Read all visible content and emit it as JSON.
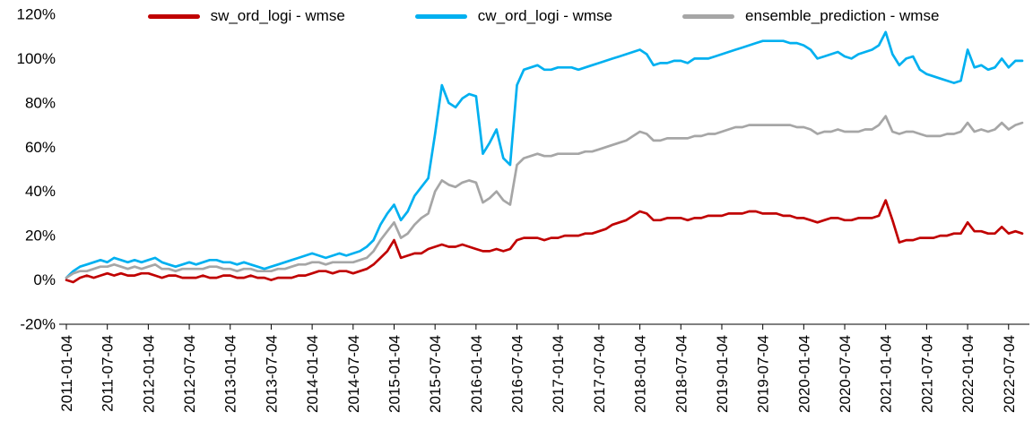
{
  "chart_data": {
    "type": "line",
    "title": "",
    "xlabel": "",
    "ylabel": "",
    "ylim": [
      -20,
      120
    ],
    "yticks": [
      120,
      100,
      80,
      60,
      40,
      20,
      0,
      -20
    ],
    "ytick_suffix": "%",
    "grid": "off",
    "legend_position": "top",
    "x_start": "2011-01-04",
    "x_sampling": "monthly",
    "x_tick_interval_points": 6,
    "x_tick_labels": [
      "2011-01-04",
      "2011-07-04",
      "2012-01-04",
      "2012-07-04",
      "2013-01-04",
      "2013-07-04",
      "2014-01-04",
      "2014-07-04",
      "2015-01-04",
      "2015-07-04",
      "2016-01-04",
      "2016-07-04",
      "2017-01-04",
      "2017-07-04",
      "2018-01-04",
      "2018-07-04",
      "2019-01-04",
      "2019-07-04",
      "2020-01-04",
      "2020-07-04",
      "2021-01-04",
      "2021-07-04",
      "2022-01-04",
      "2022-07-04"
    ],
    "series": [
      {
        "name": "sw_ord_logi - wmse",
        "color": "#C00000",
        "values": [
          0,
          -1,
          1,
          2,
          1,
          2,
          3,
          2,
          3,
          2,
          2,
          3,
          3,
          2,
          1,
          2,
          2,
          1,
          1,
          1,
          2,
          1,
          1,
          2,
          2,
          1,
          1,
          2,
          1,
          1,
          0,
          1,
          1,
          1,
          2,
          2,
          3,
          4,
          4,
          3,
          4,
          4,
          3,
          4,
          5,
          7,
          10,
          13,
          18,
          10,
          11,
          12,
          12,
          14,
          15,
          16,
          15,
          15,
          16,
          15,
          14,
          13,
          13,
          14,
          13,
          14,
          18,
          19,
          19,
          19,
          18,
          19,
          19,
          20,
          20,
          20,
          21,
          21,
          22,
          23,
          25,
          26,
          27,
          29,
          31,
          30,
          27,
          27,
          28,
          28,
          28,
          27,
          28,
          28,
          29,
          29,
          29,
          30,
          30,
          30,
          31,
          31,
          30,
          30,
          30,
          29,
          29,
          28,
          28,
          27,
          26,
          27,
          28,
          28,
          27,
          27,
          28,
          28,
          28,
          29,
          36,
          27,
          17,
          18,
          18,
          19,
          19,
          19,
          20,
          20,
          21,
          21,
          26,
          22,
          22,
          21,
          21,
          24,
          21,
          22,
          21
        ]
      },
      {
        "name": "cw_ord_logi - wmse",
        "color": "#00B0F0",
        "values": [
          1,
          4,
          6,
          7,
          8,
          9,
          8,
          10,
          9,
          8,
          9,
          8,
          9,
          10,
          8,
          7,
          6,
          7,
          8,
          7,
          8,
          9,
          9,
          8,
          8,
          7,
          8,
          7,
          6,
          5,
          6,
          7,
          8,
          9,
          10,
          11,
          12,
          11,
          10,
          11,
          12,
          11,
          12,
          13,
          15,
          18,
          25,
          30,
          34,
          27,
          31,
          38,
          42,
          46,
          66,
          88,
          80,
          78,
          82,
          84,
          83,
          57,
          62,
          68,
          55,
          52,
          88,
          95,
          96,
          97,
          95,
          95,
          96,
          96,
          96,
          95,
          96,
          97,
          98,
          99,
          100,
          101,
          102,
          103,
          104,
          102,
          97,
          98,
          98,
          99,
          99,
          98,
          100,
          100,
          100,
          101,
          102,
          103,
          104,
          105,
          106,
          107,
          108,
          108,
          108,
          108,
          107,
          107,
          106,
          104,
          100,
          101,
          102,
          103,
          101,
          100,
          102,
          103,
          104,
          106,
          112,
          102,
          97,
          100,
          101,
          95,
          93,
          92,
          91,
          90,
          89,
          90,
          104,
          96,
          97,
          95,
          96,
          100,
          96,
          99,
          99
        ]
      },
      {
        "name": "ensemble_prediction - wmse",
        "color": "#A6A6A6",
        "values": [
          1,
          3,
          4,
          4,
          5,
          6,
          6,
          7,
          6,
          5,
          6,
          5,
          6,
          7,
          5,
          5,
          4,
          5,
          5,
          5,
          5,
          6,
          6,
          5,
          5,
          4,
          5,
          5,
          4,
          4,
          4,
          5,
          5,
          6,
          7,
          7,
          8,
          8,
          7,
          8,
          8,
          8,
          8,
          9,
          10,
          13,
          18,
          22,
          26,
          19,
          21,
          25,
          28,
          30,
          40,
          45,
          43,
          42,
          44,
          45,
          44,
          35,
          37,
          40,
          36,
          34,
          52,
          55,
          56,
          57,
          56,
          56,
          57,
          57,
          57,
          57,
          58,
          58,
          59,
          60,
          61,
          62,
          63,
          65,
          67,
          66,
          63,
          63,
          64,
          64,
          64,
          64,
          65,
          65,
          66,
          66,
          67,
          68,
          69,
          69,
          70,
          70,
          70,
          70,
          70,
          70,
          70,
          69,
          69,
          68,
          66,
          67,
          67,
          68,
          67,
          67,
          67,
          68,
          68,
          70,
          74,
          67,
          66,
          67,
          67,
          66,
          65,
          65,
          65,
          66,
          66,
          67,
          71,
          67,
          68,
          67,
          68,
          71,
          68,
          70,
          71
        ]
      }
    ]
  }
}
